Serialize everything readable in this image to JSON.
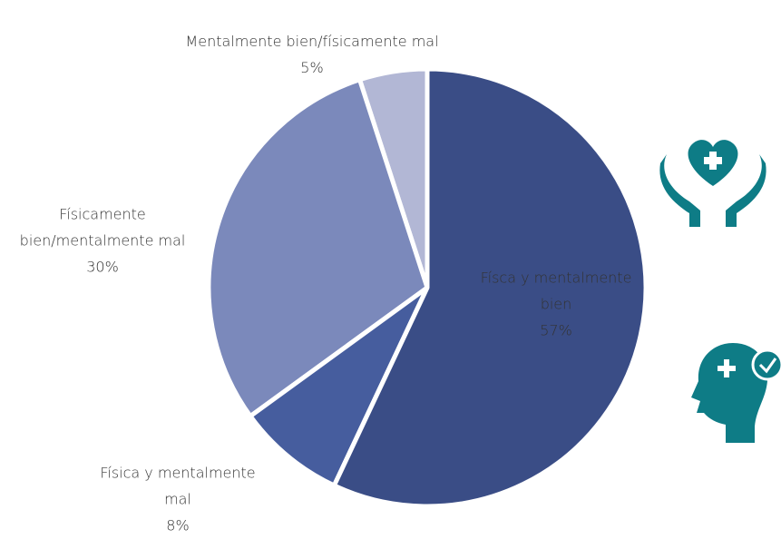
{
  "chart_data": {
    "type": "pie",
    "categories": [
      "Físca y mentalmente bien",
      "Física y mentalmente mal",
      "Físicamente bien/mentalmente mal",
      "Mentalmente bien/físicamente mal"
    ],
    "values": [
      57,
      8,
      30,
      5
    ],
    "value_labels": [
      "57%",
      "8%",
      "30%",
      "5%"
    ],
    "colors": [
      "#3a4d86",
      "#465d9e",
      "#7b89bb",
      "#b2b7d5"
    ]
  }
}
